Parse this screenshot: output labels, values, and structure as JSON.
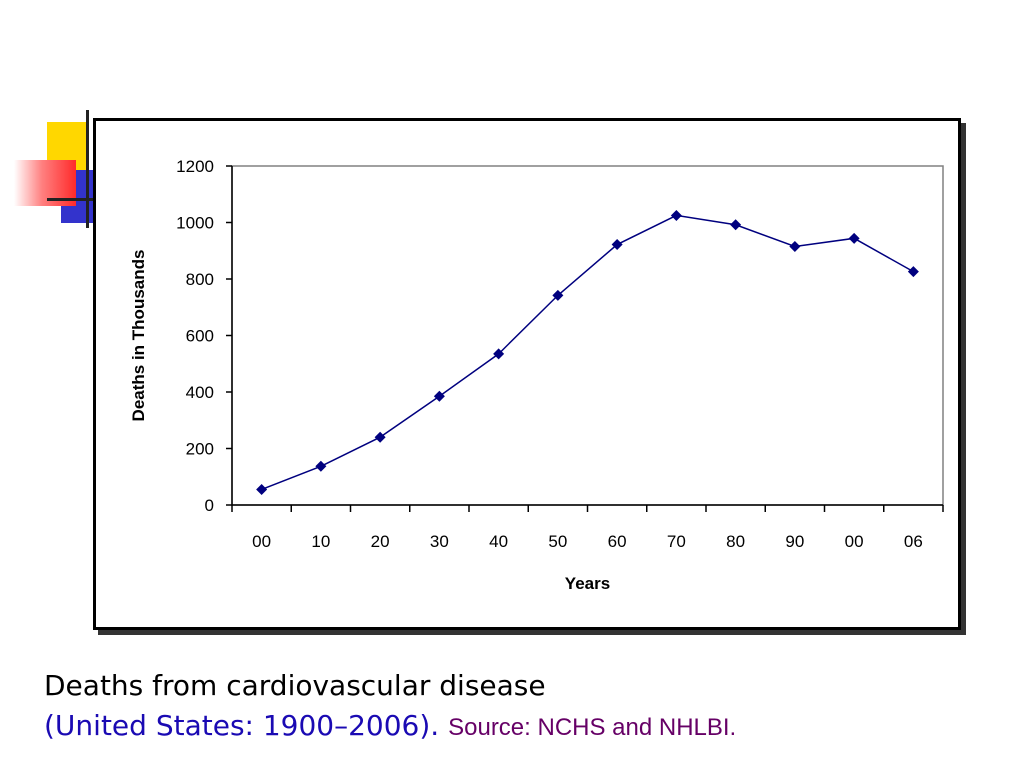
{
  "chart_data": {
    "type": "line",
    "title": "",
    "xlabel": "Years",
    "ylabel": "Deaths in Thousands",
    "ylim": [
      0,
      1200
    ],
    "yticks": [
      0,
      200,
      400,
      600,
      800,
      1000,
      1200
    ],
    "categories": [
      "00",
      "10",
      "20",
      "30",
      "40",
      "50",
      "60",
      "70",
      "80",
      "90",
      "00",
      "06"
    ],
    "series": [
      {
        "values": [
          55,
          137,
          240,
          385,
          535,
          742,
          922,
          1025,
          992,
          915,
          944,
          826
        ]
      }
    ],
    "grid": false,
    "colors": {
      "line": "#00007f",
      "marker": "#00007f",
      "plot_border": "#808080"
    }
  },
  "caption": {
    "line1": "Deaths from cardiovascular disease",
    "line2": "(United States: 1900–2006).",
    "source": "Source: NCHS and NHLBI."
  }
}
